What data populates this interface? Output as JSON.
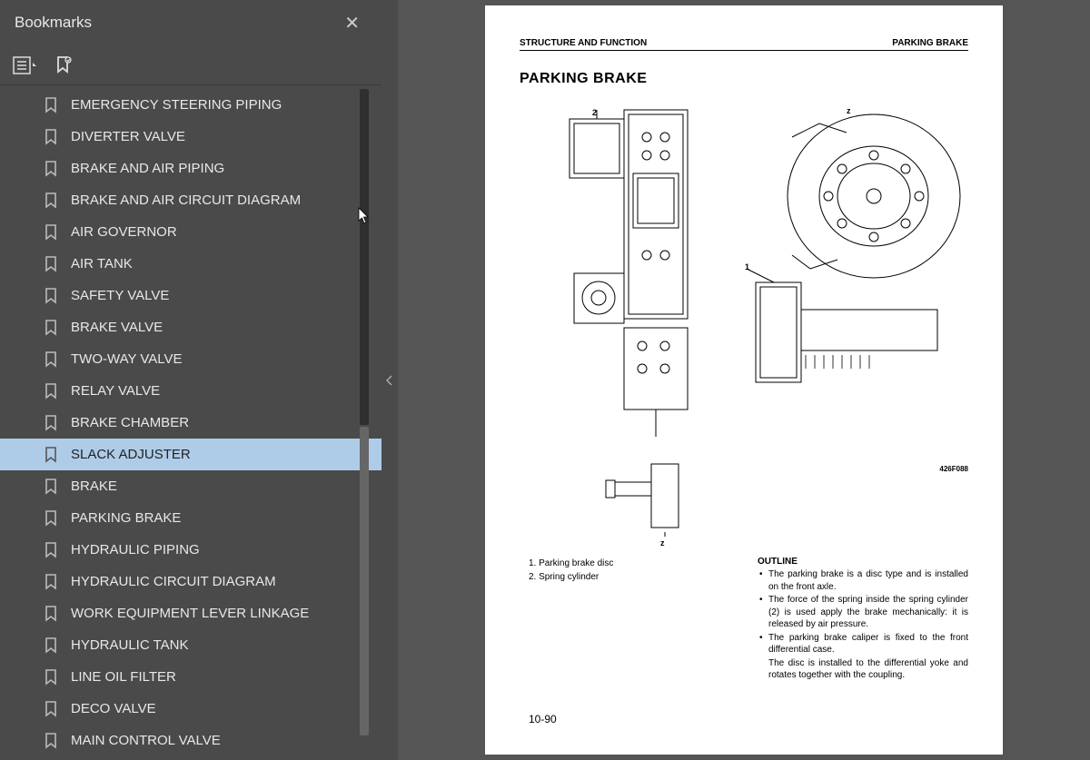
{
  "sidebar": {
    "title": "Bookmarks",
    "items": [
      {
        "label": "EMERGENCY STEERING PIPING"
      },
      {
        "label": "DIVERTER VALVE"
      },
      {
        "label": "BRAKE AND AIR PIPING"
      },
      {
        "label": "BRAKE AND AIR CIRCUIT DIAGRAM"
      },
      {
        "label": "AIR GOVERNOR"
      },
      {
        "label": "AIR TANK"
      },
      {
        "label": "SAFETY VALVE"
      },
      {
        "label": "BRAKE VALVE"
      },
      {
        "label": "TWO-WAY VALVE"
      },
      {
        "label": "RELAY VALVE"
      },
      {
        "label": "BRAKE CHAMBER"
      },
      {
        "label": "SLACK ADJUSTER",
        "selected": true
      },
      {
        "label": "BRAKE"
      },
      {
        "label": "PARKING BRAKE"
      },
      {
        "label": "HYDRAULIC PIPING"
      },
      {
        "label": "HYDRAULIC CIRCUIT DIAGRAM"
      },
      {
        "label": "WORK EQUIPMENT LEVER LINKAGE"
      },
      {
        "label": "HYDRAULIC TANK"
      },
      {
        "label": "LINE OIL FILTER"
      },
      {
        "label": "DECO VALVE"
      },
      {
        "label": "MAIN CONTROL VALVE"
      }
    ]
  },
  "page": {
    "header_left": "STRUCTURE AND FUNCTION",
    "header_right": "PARKING BRAKE",
    "title": "PARKING BRAKE",
    "figure_code": "426F088",
    "legend": [
      "1. Parking brake disc",
      "2. Spring cylinder"
    ],
    "outline_title": "OUTLINE",
    "outline_items": [
      "The parking brake is a disc type and is installed on the front axle.",
      "The force of the spring inside the spring cylinder (2) is used apply the brake mechanically: it is released by air pressure.",
      "The parking brake caliper is fixed to the front differential case.",
      "The disc is installed to the differential yoke and rotates together with the coupling."
    ],
    "page_number": "10-90",
    "callouts": {
      "n1": "1",
      "n2": "2",
      "z1": "z",
      "z2": "z"
    }
  },
  "colors": {
    "sidebar_bg": "#4a4a4a",
    "selected_bg": "#aecce8",
    "page_bg": "#ffffff",
    "viewer_bg": "#555555"
  }
}
